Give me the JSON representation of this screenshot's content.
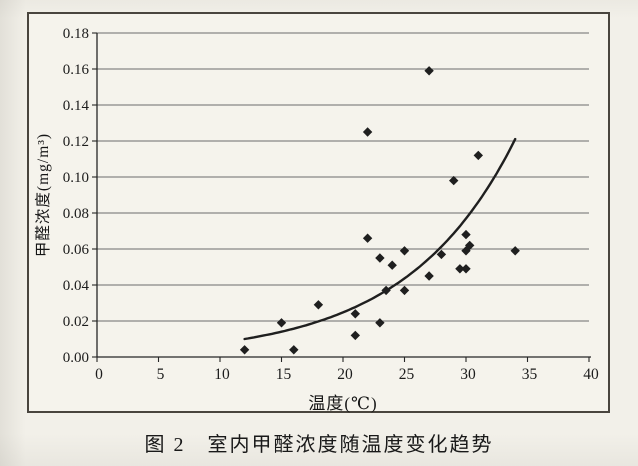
{
  "chart_data": {
    "type": "scatter",
    "title": "图 2　室内甲醛浓度随温度变化趋势",
    "xlabel": "温度(℃)",
    "ylabel": "甲醛浓度(mg/m³)",
    "xlim": [
      0,
      40
    ],
    "ylim": [
      0,
      0.18
    ],
    "xticks": [
      "0",
      "5",
      "10",
      "15",
      "20",
      "25",
      "30",
      "35",
      "40"
    ],
    "yticks": [
      "0.00",
      "0.02",
      "0.04",
      "0.06",
      "0.08",
      "0.10",
      "0.12",
      "0.14",
      "0.16",
      "0.18"
    ],
    "grid": "horizontal-only",
    "legend": "none",
    "marker": "diamond",
    "points": [
      [
        12,
        0.004
      ],
      [
        15,
        0.019
      ],
      [
        16,
        0.004
      ],
      [
        18,
        0.029
      ],
      [
        21,
        0.024
      ],
      [
        21,
        0.012
      ],
      [
        23,
        0.019
      ],
      [
        22,
        0.066
      ],
      [
        22,
        0.125
      ],
      [
        23,
        0.055
      ],
      [
        24,
        0.051
      ],
      [
        23.5,
        0.037
      ],
      [
        25,
        0.037
      ],
      [
        25,
        0.059
      ],
      [
        27,
        0.045
      ],
      [
        27,
        0.159
      ],
      [
        28,
        0.057
      ],
      [
        29,
        0.098
      ],
      [
        29.5,
        0.049
      ],
      [
        30,
        0.049
      ],
      [
        30,
        0.059
      ],
      [
        30.3,
        0.062
      ],
      [
        30,
        0.068
      ],
      [
        31,
        0.112
      ],
      [
        34,
        0.059
      ]
    ],
    "trend_curve": {
      "shape": "exponential",
      "a": 0.00257,
      "b": 0.1133,
      "x_range": [
        12,
        34
      ],
      "y_start": 0.01,
      "y_end": 0.121
    },
    "colors": {
      "marker": "#1f1f1f",
      "trend_line": "#1f1f1f",
      "grid": "#6b6b6b",
      "axis": "#262626",
      "text": "#1c1c1c",
      "paper": "#f2f0e9"
    }
  }
}
